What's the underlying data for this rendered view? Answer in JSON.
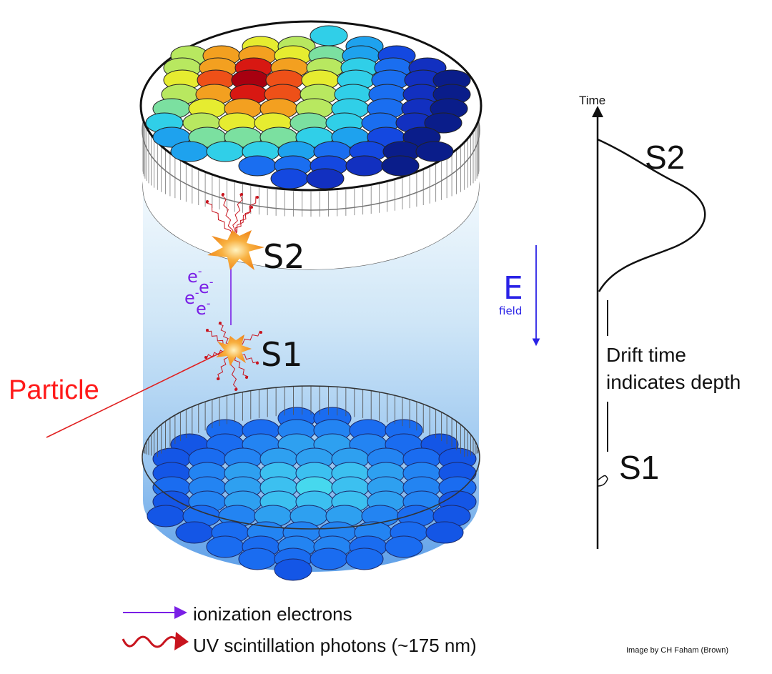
{
  "diagram": {
    "particle_label": "Particle",
    "s1_label": "S1",
    "s2_label": "S2",
    "electron_symbol": "e",
    "electron_charge": "-",
    "efield_symbol": "E",
    "efield_sub": "field"
  },
  "signal_plot": {
    "axis_label": "Time",
    "s2_label": "S2",
    "s1_label": "S1",
    "drift_line1": "Drift time",
    "drift_line2": "indicates depth"
  },
  "legend": {
    "electrons": "ionization electrons",
    "photons": "UV scintillation photons (~175 nm)"
  },
  "credit": "Image by CH Faham (Brown)",
  "colors": {
    "particle": "#ff1a1a",
    "electron_arrow": "#7a1fe6",
    "photon": "#c8141e",
    "efield": "#2a22e6",
    "flash": "#f5a030"
  }
}
